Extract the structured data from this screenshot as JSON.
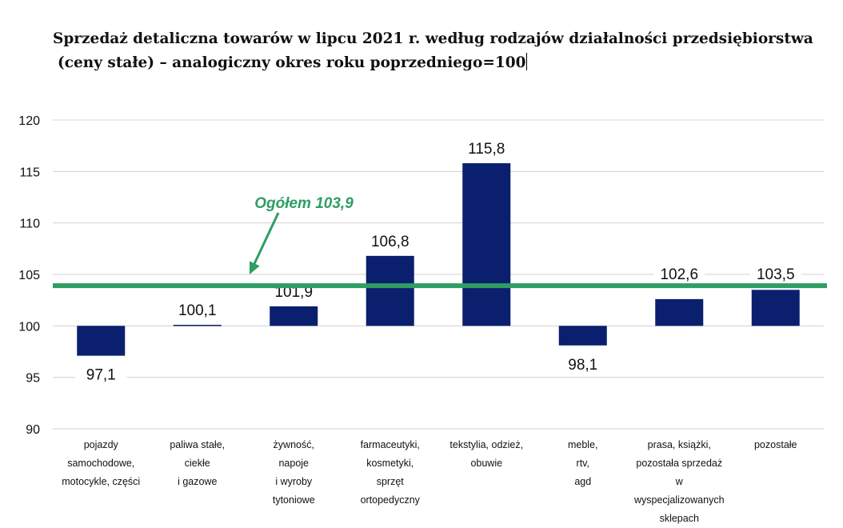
{
  "title": {
    "line1": "Sprzedaż detaliczna towarów w lipcu 2021 r. według rodzajów działalności przedsiębiorstwa",
    "line2": "(ceny stałe) – analogiczny okres roku poprzedniego=100"
  },
  "colors": {
    "bar": "#0a1f6e",
    "reference_line": "#2e9e63",
    "grid": "#d0d0d0",
    "axis_text": "#111111"
  },
  "chart_data": {
    "type": "bar",
    "title": "Sprzedaż detaliczna towarów w lipcu 2021 r. według rodzajów działalności przedsiębiorstwa (ceny stałe) – analogiczny okres roku poprzedniego=100",
    "baseline": 100,
    "ylim": [
      90,
      120
    ],
    "yticks": [
      90,
      95,
      100,
      105,
      110,
      115,
      120
    ],
    "grid": true,
    "categories": [
      [
        "pojazdy",
        "samochodowe,",
        "motocykle, części"
      ],
      [
        "paliwa stałe,",
        "ciekłe",
        "i gazowe"
      ],
      [
        "żywność,",
        "napoje",
        "i wyroby",
        "tytoniowe"
      ],
      [
        "farmaceutyki,",
        "kosmetyki,",
        "sprzęt",
        "ortopedyczny"
      ],
      [
        "tekstylia, odzież,",
        "obuwie"
      ],
      [
        "meble,",
        "rtv,",
        "agd"
      ],
      [
        "prasa, książki,",
        "pozostała sprzedaż",
        "w wyspecjalizowanych",
        "sklepach"
      ],
      [
        "pozostałe"
      ]
    ],
    "values": [
      97.1,
      100.1,
      101.9,
      106.8,
      115.8,
      98.1,
      102.6,
      103.5
    ],
    "labels": [
      "97,1",
      "100,1",
      "101,9",
      "106,8",
      "115,8",
      "98,1",
      "102,6",
      "103,5"
    ],
    "reference": {
      "value": 103.9,
      "label": "Ogółem 103,9"
    }
  }
}
